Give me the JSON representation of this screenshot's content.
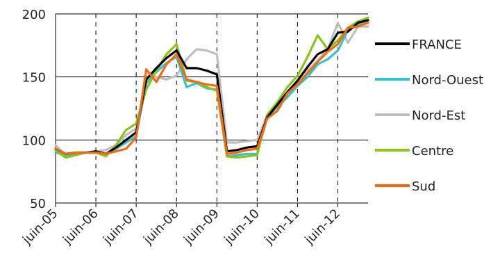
{
  "chart_data": {
    "type": "line",
    "title": "",
    "xlabel": "",
    "ylabel": "",
    "ylim": [
      50,
      200
    ],
    "yticks": [
      50,
      100,
      150,
      200
    ],
    "xticks": [
      "juin-05",
      "juin-06",
      "juin-07",
      "juin-08",
      "juin-09",
      "juin-10",
      "juin-11",
      "juin-12"
    ],
    "grid": "horizontal solid, vertical dashed",
    "legend_position": "right",
    "x_quarters": [
      "2005-T2",
      "2005-T3",
      "2005-T4",
      "2006-T1",
      "2006-T2",
      "2006-T3",
      "2006-T4",
      "2007-T1",
      "2007-T2",
      "2007-T3",
      "2007-T4",
      "2008-T1",
      "2008-T2",
      "2008-T3",
      "2008-T4",
      "2009-T1",
      "2009-T2",
      "2009-T3",
      "2009-T4",
      "2010-T1",
      "2010-T2",
      "2010-T3",
      "2010-T4",
      "2011-T1",
      "2011-T2",
      "2011-T3",
      "2011-T4",
      "2012-T1",
      "2012-T2",
      "2012-T3",
      "2012-T4",
      "2013-T1"
    ],
    "series": [
      {
        "name": "FRANCE",
        "color": "#000000",
        "values": [
          93,
          89,
          90,
          90,
          91,
          89,
          94,
          100,
          106,
          148,
          157,
          165,
          171,
          157,
          157,
          155,
          152,
          91,
          92,
          94,
          95,
          118,
          128,
          138,
          147,
          158,
          168,
          172,
          185,
          186,
          193,
          195
        ]
      },
      {
        "name": "Nord-Ouest",
        "color": "#33c3d0",
        "values": [
          90,
          88,
          89,
          90,
          90,
          89,
          93,
          98,
          103,
          145,
          154,
          161,
          166,
          142,
          145,
          141,
          140,
          87,
          88,
          89,
          89,
          118,
          126,
          134,
          143,
          150,
          160,
          164,
          171,
          187,
          191,
          193
        ]
      },
      {
        "name": "Nord-Est",
        "color": "#bfbfbf",
        "values": [
          96,
          88,
          89,
          90,
          91,
          92,
          96,
          104,
          109,
          148,
          150,
          148,
          151,
          164,
          172,
          171,
          168,
          98,
          98,
          99,
          100,
          120,
          128,
          137,
          145,
          155,
          163,
          172,
          193,
          177,
          190,
          190
        ]
      },
      {
        "name": "Centre",
        "color": "#88c41a",
        "values": [
          92,
          86,
          88,
          90,
          90,
          87,
          96,
          108,
          113,
          140,
          155,
          168,
          176,
          147,
          146,
          142,
          139,
          87,
          86,
          87,
          88,
          120,
          130,
          142,
          151,
          166,
          183,
          172,
          179,
          189,
          194,
          197
        ]
      },
      {
        "name": "Sud",
        "color": "#f36a14",
        "values": [
          93,
          89,
          90,
          90,
          90,
          89,
          91,
          93,
          102,
          156,
          146,
          160,
          168,
          148,
          146,
          144,
          143,
          89,
          90,
          92,
          93,
          117,
          123,
          137,
          144,
          153,
          162,
          170,
          176,
          189,
          190,
          193
        ]
      }
    ]
  }
}
